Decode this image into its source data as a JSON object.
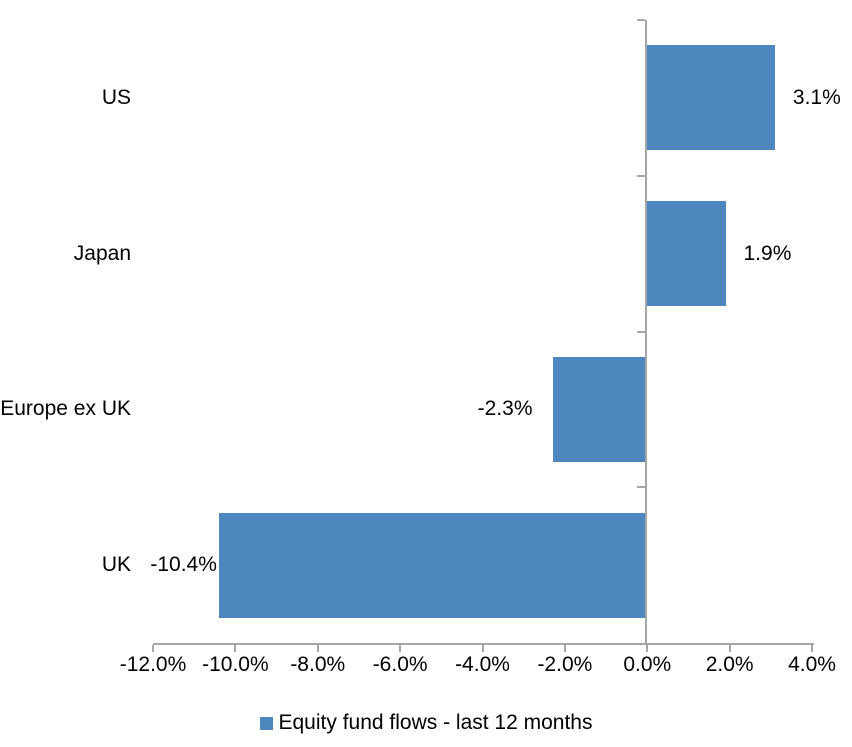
{
  "chart_data": {
    "type": "bar",
    "orientation": "horizontal",
    "title": "",
    "xlabel": "",
    "ylabel": "",
    "categories": [
      "US",
      "Japan",
      "Europe ex UK",
      "UK"
    ],
    "series": [
      {
        "name": "Equity fund flows - last 12 months",
        "values": [
          3.1,
          1.9,
          -2.3,
          -10.4
        ],
        "color": "#4e87be"
      }
    ],
    "data_labels": [
      "3.1%",
      "1.9%",
      "-2.3%",
      "-10.4%"
    ],
    "xlim": [
      -12,
      4
    ],
    "x_ticks": [
      -12,
      -10,
      -8,
      -6,
      -4,
      -2,
      0,
      2,
      4
    ],
    "x_tick_labels": [
      "-12.0%",
      "-10.0%",
      "-8.0%",
      "-6.0%",
      "-4.0%",
      "-2.0%",
      "0.0%",
      "2.0%",
      "4.0%"
    ],
    "grid": false,
    "legend": {
      "position": "bottom",
      "entries": [
        {
          "label": "Equity fund flows - last 12 months",
          "color": "#4e87be"
        }
      ]
    },
    "axis_color": "#a6a6a6",
    "text_color": "#000000",
    "background": "#ffffff"
  }
}
